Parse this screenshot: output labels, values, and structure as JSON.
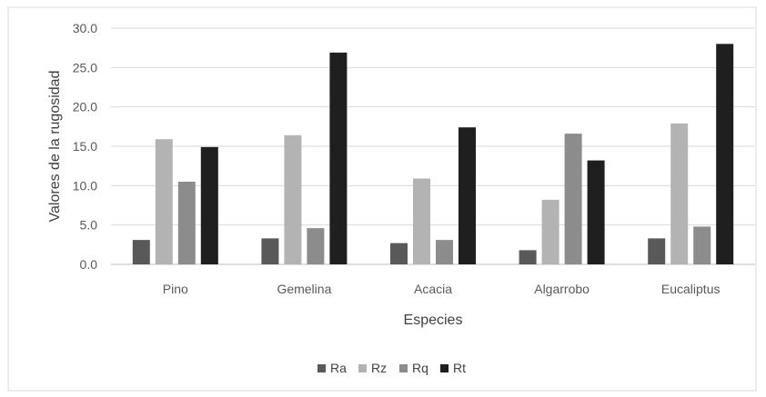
{
  "chart_data": {
    "type": "bar",
    "title": "",
    "xlabel": "Especies",
    "ylabel": "Valores de la rugosidad",
    "ylim": [
      0,
      30
    ],
    "yticks": [
      "0.0",
      "5.0",
      "10.0",
      "15.0",
      "20.0",
      "25.0",
      "30.0"
    ],
    "grid": true,
    "legend_position": "bottom",
    "categories": [
      "Pino",
      "Gemelina",
      "Acacia",
      "Algarrobo",
      "Eucaliptus"
    ],
    "series": [
      {
        "name": "Ra",
        "color": "#595959",
        "values": [
          3.1,
          3.3,
          2.7,
          1.8,
          3.3
        ]
      },
      {
        "name": "Rz",
        "color": "#b3b3b3",
        "values": [
          15.9,
          16.4,
          10.9,
          8.2,
          17.9
        ]
      },
      {
        "name": "Rq",
        "color": "#8c8c8c",
        "values": [
          10.5,
          4.6,
          3.1,
          16.6,
          4.8
        ]
      },
      {
        "name": "Rt",
        "color": "#1f1f1f",
        "values": [
          14.9,
          26.9,
          17.4,
          13.2,
          28.0
        ]
      }
    ]
  }
}
